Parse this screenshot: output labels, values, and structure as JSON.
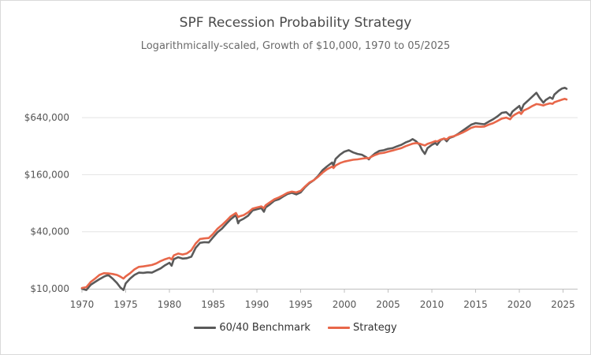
{
  "chart_data": {
    "type": "line",
    "title": "SPF Recession Probability Strategy",
    "subtitle": "Logarithmically-scaled, Growth of $10,000, 1970 to 05/2025",
    "y_scale": "log",
    "ylim": [
      10000,
      2000000
    ],
    "xlim": [
      1970,
      2025.4
    ],
    "y_ticks": [
      {
        "value": 10000,
        "label": "$10,000"
      },
      {
        "value": 40000,
        "label": "$40,000"
      },
      {
        "value": 160000,
        "label": "$160,000"
      },
      {
        "value": 640000,
        "label": "$640,000"
      }
    ],
    "x_ticks": [
      {
        "value": 1970,
        "label": "1970"
      },
      {
        "value": 1975,
        "label": "1975"
      },
      {
        "value": 1980,
        "label": "1980"
      },
      {
        "value": 1985,
        "label": "1985"
      },
      {
        "value": 1990,
        "label": "1990"
      },
      {
        "value": 1995,
        "label": "1995"
      },
      {
        "value": 2000,
        "label": "2000"
      },
      {
        "value": 2005,
        "label": "2005"
      },
      {
        "value": 2010,
        "label": "2010"
      },
      {
        "value": 2015,
        "label": "2015"
      },
      {
        "value": 2020,
        "label": "2020"
      },
      {
        "value": 2025,
        "label": "2025"
      }
    ],
    "grid": "horizontal",
    "legend_position": "bottom",
    "series": [
      {
        "name": "60/40 Benchmark",
        "color": "#5a5a5a",
        "points": [
          [
            1970.0,
            10000
          ],
          [
            1970.5,
            9700
          ],
          [
            1971.0,
            11000
          ],
          [
            1971.5,
            11800
          ],
          [
            1972.0,
            12600
          ],
          [
            1972.5,
            13400
          ],
          [
            1973.0,
            14000
          ],
          [
            1973.5,
            12800
          ],
          [
            1974.0,
            11500
          ],
          [
            1974.4,
            10300
          ],
          [
            1974.75,
            9700
          ],
          [
            1975.0,
            11400
          ],
          [
            1975.5,
            12800
          ],
          [
            1976.0,
            14000
          ],
          [
            1976.5,
            14800
          ],
          [
            1977.0,
            14700
          ],
          [
            1977.5,
            14900
          ],
          [
            1978.0,
            14800
          ],
          [
            1978.5,
            15600
          ],
          [
            1979.0,
            16400
          ],
          [
            1979.5,
            17700
          ],
          [
            1980.0,
            18800
          ],
          [
            1980.25,
            17500
          ],
          [
            1980.5,
            20500
          ],
          [
            1981.0,
            21500
          ],
          [
            1981.5,
            20800
          ],
          [
            1982.0,
            21000
          ],
          [
            1982.5,
            21800
          ],
          [
            1983.0,
            27000
          ],
          [
            1983.5,
            30500
          ],
          [
            1984.0,
            31000
          ],
          [
            1984.5,
            30800
          ],
          [
            1985.0,
            35000
          ],
          [
            1985.5,
            39500
          ],
          [
            1986.0,
            43000
          ],
          [
            1986.5,
            48500
          ],
          [
            1987.0,
            54000
          ],
          [
            1987.6,
            60000
          ],
          [
            1987.85,
            49000
          ],
          [
            1988.0,
            52000
          ],
          [
            1988.5,
            55000
          ],
          [
            1989.0,
            59000
          ],
          [
            1989.5,
            67000
          ],
          [
            1990.0,
            69000
          ],
          [
            1990.5,
            71000
          ],
          [
            1990.8,
            65000
          ],
          [
            1991.0,
            72000
          ],
          [
            1991.5,
            78000
          ],
          [
            1992.0,
            85000
          ],
          [
            1992.5,
            88000
          ],
          [
            1993.0,
            94000
          ],
          [
            1993.5,
            100000
          ],
          [
            1994.0,
            103000
          ],
          [
            1994.5,
            99000
          ],
          [
            1995.0,
            104000
          ],
          [
            1995.5,
            118000
          ],
          [
            1996.0,
            130000
          ],
          [
            1996.5,
            140000
          ],
          [
            1997.0,
            155000
          ],
          [
            1997.5,
            178000
          ],
          [
            1998.0,
            195000
          ],
          [
            1998.6,
            215000
          ],
          [
            1998.75,
            200000
          ],
          [
            1999.0,
            235000
          ],
          [
            1999.5,
            260000
          ],
          [
            2000.0,
            280000
          ],
          [
            2000.5,
            290000
          ],
          [
            2001.0,
            275000
          ],
          [
            2001.5,
            265000
          ],
          [
            2002.0,
            260000
          ],
          [
            2002.5,
            245000
          ],
          [
            2002.8,
            232000
          ],
          [
            2003.0,
            245000
          ],
          [
            2003.5,
            268000
          ],
          [
            2004.0,
            285000
          ],
          [
            2004.5,
            290000
          ],
          [
            2005.0,
            300000
          ],
          [
            2005.5,
            305000
          ],
          [
            2006.0,
            318000
          ],
          [
            2006.5,
            330000
          ],
          [
            2007.0,
            350000
          ],
          [
            2007.5,
            365000
          ],
          [
            2007.8,
            380000
          ],
          [
            2008.2,
            360000
          ],
          [
            2008.6,
            330000
          ],
          [
            2008.9,
            290000
          ],
          [
            2009.2,
            265000
          ],
          [
            2009.5,
            305000
          ],
          [
            2010.0,
            330000
          ],
          [
            2010.4,
            345000
          ],
          [
            2010.6,
            330000
          ],
          [
            2011.0,
            370000
          ],
          [
            2011.4,
            385000
          ],
          [
            2011.7,
            360000
          ],
          [
            2012.0,
            390000
          ],
          [
            2012.5,
            405000
          ],
          [
            2013.0,
            430000
          ],
          [
            2013.5,
            465000
          ],
          [
            2014.0,
            500000
          ],
          [
            2014.5,
            540000
          ],
          [
            2015.0,
            560000
          ],
          [
            2015.6,
            550000
          ],
          [
            2016.0,
            545000
          ],
          [
            2016.5,
            580000
          ],
          [
            2017.0,
            615000
          ],
          [
            2017.5,
            660000
          ],
          [
            2018.0,
            720000
          ],
          [
            2018.5,
            730000
          ],
          [
            2018.95,
            670000
          ],
          [
            2019.2,
            740000
          ],
          [
            2019.5,
            780000
          ],
          [
            2020.0,
            850000
          ],
          [
            2020.2,
            760000
          ],
          [
            2020.5,
            880000
          ],
          [
            2021.0,
            970000
          ],
          [
            2021.5,
            1070000
          ],
          [
            2021.95,
            1170000
          ],
          [
            2022.3,
            1040000
          ],
          [
            2022.75,
            920000
          ],
          [
            2023.0,
            980000
          ],
          [
            2023.5,
            1050000
          ],
          [
            2023.8,
            1010000
          ],
          [
            2024.0,
            1120000
          ],
          [
            2024.5,
            1230000
          ],
          [
            2024.9,
            1300000
          ],
          [
            2025.2,
            1320000
          ],
          [
            2025.4,
            1290000
          ]
        ]
      },
      {
        "name": "Strategy",
        "color": "#e8674a",
        "points": [
          [
            1970.0,
            10200
          ],
          [
            1970.5,
            10400
          ],
          [
            1971.0,
            11800
          ],
          [
            1971.5,
            12800
          ],
          [
            1972.0,
            14000
          ],
          [
            1972.5,
            14600
          ],
          [
            1973.0,
            14500
          ],
          [
            1973.5,
            14300
          ],
          [
            1974.0,
            14000
          ],
          [
            1974.4,
            13400
          ],
          [
            1974.75,
            12800
          ],
          [
            1975.0,
            13500
          ],
          [
            1975.5,
            14600
          ],
          [
            1976.0,
            16000
          ],
          [
            1976.5,
            17000
          ],
          [
            1977.0,
            17200
          ],
          [
            1977.5,
            17500
          ],
          [
            1978.0,
            17800
          ],
          [
            1978.5,
            18500
          ],
          [
            1979.0,
            19600
          ],
          [
            1979.5,
            20500
          ],
          [
            1980.0,
            21200
          ],
          [
            1980.25,
            20400
          ],
          [
            1980.5,
            22500
          ],
          [
            1981.0,
            23500
          ],
          [
            1981.5,
            23000
          ],
          [
            1982.0,
            23600
          ],
          [
            1982.5,
            25500
          ],
          [
            1983.0,
            30000
          ],
          [
            1983.5,
            33500
          ],
          [
            1984.0,
            34000
          ],
          [
            1984.5,
            34300
          ],
          [
            1985.0,
            38000
          ],
          [
            1985.5,
            43000
          ],
          [
            1986.0,
            47000
          ],
          [
            1986.5,
            52000
          ],
          [
            1987.0,
            58000
          ],
          [
            1987.6,
            63000
          ],
          [
            1987.85,
            57000
          ],
          [
            1988.0,
            58000
          ],
          [
            1988.5,
            60000
          ],
          [
            1989.0,
            64000
          ],
          [
            1989.5,
            70000
          ],
          [
            1990.0,
            72000
          ],
          [
            1990.5,
            74000
          ],
          [
            1990.8,
            71000
          ],
          [
            1991.0,
            76000
          ],
          [
            1991.5,
            82000
          ],
          [
            1992.0,
            88000
          ],
          [
            1992.5,
            92000
          ],
          [
            1993.0,
            97000
          ],
          [
            1993.5,
            103000
          ],
          [
            1994.0,
            106000
          ],
          [
            1994.5,
            104000
          ],
          [
            1995.0,
            108000
          ],
          [
            1995.5,
            120000
          ],
          [
            1996.0,
            132000
          ],
          [
            1996.5,
            140000
          ],
          [
            1997.0,
            152000
          ],
          [
            1997.5,
            168000
          ],
          [
            1998.0,
            182000
          ],
          [
            1998.6,
            195000
          ],
          [
            1998.75,
            188000
          ],
          [
            1999.0,
            200000
          ],
          [
            1999.5,
            212000
          ],
          [
            2000.0,
            220000
          ],
          [
            2000.5,
            225000
          ],
          [
            2001.0,
            230000
          ],
          [
            2001.5,
            232000
          ],
          [
            2002.0,
            236000
          ],
          [
            2002.5,
            240000
          ],
          [
            2002.8,
            238000
          ],
          [
            2003.0,
            245000
          ],
          [
            2003.5,
            258000
          ],
          [
            2004.0,
            268000
          ],
          [
            2004.5,
            272000
          ],
          [
            2005.0,
            280000
          ],
          [
            2005.5,
            287000
          ],
          [
            2006.0,
            296000
          ],
          [
            2006.5,
            305000
          ],
          [
            2007.0,
            320000
          ],
          [
            2007.5,
            332000
          ],
          [
            2007.8,
            340000
          ],
          [
            2008.2,
            345000
          ],
          [
            2008.6,
            340000
          ],
          [
            2008.9,
            332000
          ],
          [
            2009.2,
            325000
          ],
          [
            2009.5,
            338000
          ],
          [
            2010.0,
            350000
          ],
          [
            2010.4,
            362000
          ],
          [
            2010.6,
            358000
          ],
          [
            2011.0,
            375000
          ],
          [
            2011.4,
            385000
          ],
          [
            2011.7,
            378000
          ],
          [
            2012.0,
            398000
          ],
          [
            2012.5,
            408000
          ],
          [
            2013.0,
            425000
          ],
          [
            2013.5,
            445000
          ],
          [
            2014.0,
            470000
          ],
          [
            2014.5,
            500000
          ],
          [
            2015.0,
            515000
          ],
          [
            2015.6,
            512000
          ],
          [
            2016.0,
            515000
          ],
          [
            2016.5,
            540000
          ],
          [
            2017.0,
            560000
          ],
          [
            2017.5,
            590000
          ],
          [
            2018.0,
            625000
          ],
          [
            2018.5,
            640000
          ],
          [
            2018.95,
            615000
          ],
          [
            2019.2,
            660000
          ],
          [
            2019.5,
            690000
          ],
          [
            2020.0,
            730000
          ],
          [
            2020.2,
            700000
          ],
          [
            2020.5,
            760000
          ],
          [
            2021.0,
            800000
          ],
          [
            2021.5,
            850000
          ],
          [
            2021.95,
            890000
          ],
          [
            2022.3,
            880000
          ],
          [
            2022.75,
            860000
          ],
          [
            2023.0,
            880000
          ],
          [
            2023.5,
            905000
          ],
          [
            2023.8,
            895000
          ],
          [
            2024.0,
            930000
          ],
          [
            2024.5,
            965000
          ],
          [
            2024.9,
            990000
          ],
          [
            2025.2,
            1010000
          ],
          [
            2025.4,
            995000
          ]
        ]
      }
    ]
  }
}
